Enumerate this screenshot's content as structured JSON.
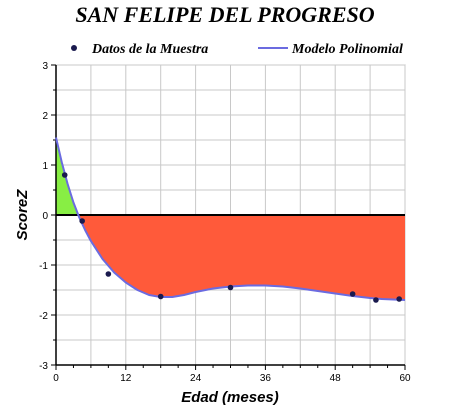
{
  "chart_data": {
    "type": "line",
    "title": "SAN FELIPE DEL PROGRESO",
    "xlabel": "Edad (meses)",
    "ylabel": "ScoreZ",
    "xlim": [
      0,
      60
    ],
    "ylim": [
      -3,
      3
    ],
    "x_ticks": [
      0,
      12,
      24,
      36,
      48,
      60
    ],
    "y_ticks": [
      -3,
      -2,
      -1,
      0,
      1,
      2,
      3
    ],
    "grid": true,
    "legend_position": "top",
    "series": [
      {
        "name": "Datos de la Muestra",
        "kind": "scatter",
        "color": "#1a1a4e",
        "x": [
          1.5,
          4.5,
          9,
          18,
          30,
          51,
          55,
          59
        ],
        "y": [
          0.8,
          -0.12,
          -1.18,
          -1.63,
          -1.45,
          -1.58,
          -1.7,
          -1.68
        ]
      },
      {
        "name": "Modelo Polinomial",
        "kind": "line",
        "color": "#6b6be0",
        "x": [
          0,
          1,
          2,
          3,
          4,
          5,
          6,
          8,
          10,
          12,
          14,
          16,
          18,
          20,
          22,
          24,
          27,
          30,
          33,
          36,
          39,
          42,
          45,
          48,
          51,
          54,
          56,
          58,
          60
        ],
        "y": [
          1.55,
          1.05,
          0.62,
          0.25,
          -0.05,
          -0.3,
          -0.52,
          -0.88,
          -1.15,
          -1.35,
          -1.5,
          -1.6,
          -1.64,
          -1.64,
          -1.6,
          -1.54,
          -1.47,
          -1.43,
          -1.41,
          -1.41,
          -1.43,
          -1.47,
          -1.52,
          -1.57,
          -1.62,
          -1.66,
          -1.68,
          -1.69,
          -1.7
        ]
      }
    ],
    "fill_colors": {
      "positive": "#88ee44",
      "negative": "#ff5a3a"
    }
  }
}
